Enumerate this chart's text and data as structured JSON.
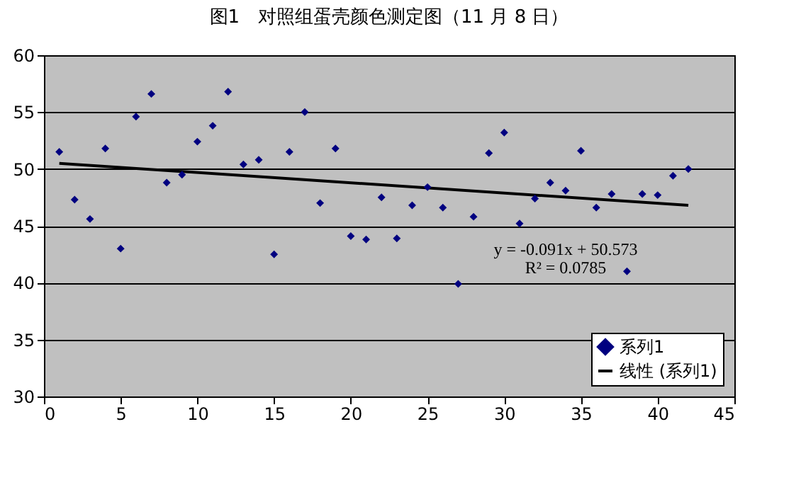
{
  "chart_data": {
    "type": "scatter",
    "title": "图1　对照组蛋壳颜色测定图（11 月 8 日）",
    "x": [
      1,
      2,
      3,
      4,
      5,
      6,
      7,
      8,
      9,
      10,
      11,
      12,
      13,
      14,
      15,
      16,
      17,
      18,
      19,
      20,
      21,
      22,
      23,
      24,
      25,
      26,
      27,
      28,
      29,
      30,
      31,
      32,
      33,
      34,
      35,
      36,
      37,
      38,
      39,
      40,
      41,
      42
    ],
    "series": [
      {
        "name": "系列1",
        "color": "#000080",
        "marker": "diamond",
        "values": [
          51.5,
          47.3,
          45.6,
          51.8,
          43.0,
          54.6,
          56.6,
          48.8,
          49.5,
          52.4,
          53.8,
          56.8,
          50.4,
          50.8,
          42.5,
          51.5,
          55.0,
          47.0,
          51.8,
          44.1,
          43.8,
          47.5,
          43.9,
          46.8,
          48.4,
          46.6,
          39.9,
          45.8,
          51.4,
          53.2,
          45.2,
          47.4,
          48.8,
          48.1,
          51.6,
          46.6,
          47.8,
          41.0,
          47.8,
          47.7,
          49.4,
          50.0
        ]
      },
      {
        "name": "线性 (系列1)",
        "color": "#000000",
        "type": "line",
        "line_style": "solid",
        "x": [
          1,
          42
        ],
        "values": [
          50.5,
          46.8
        ]
      }
    ],
    "annotations": [
      "y = -0.091x + 50.573",
      "R² = 0.0785"
    ],
    "xlim": [
      0,
      45
    ],
    "xticks": [
      0,
      5,
      10,
      15,
      20,
      25,
      30,
      35,
      40,
      45
    ],
    "ylim": [
      30,
      60
    ],
    "yticks": [
      30,
      35,
      40,
      45,
      50,
      55,
      60
    ],
    "grid": "y",
    "legend": "bottom right"
  }
}
